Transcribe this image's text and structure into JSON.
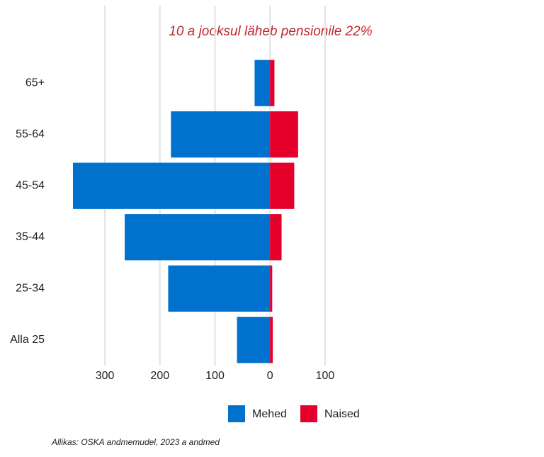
{
  "chart_data": {
    "type": "bar",
    "orientation": "horizontal",
    "stacked": "diverging",
    "title": "10 a jooksul läheb pensionile 22%",
    "categories": [
      "65+",
      "55-64",
      "45-54",
      "35-44",
      "25-34",
      "Alla 25"
    ],
    "series": [
      {
        "name": "Mehed",
        "color": "#0072ce",
        "values": [
          -28,
          -180,
          -358,
          -264,
          -185,
          -60
        ]
      },
      {
        "name": "Naised",
        "color": "#e4002b",
        "values": [
          8,
          51,
          44,
          21,
          4,
          5
        ]
      }
    ],
    "xlim": [
      -358,
      140
    ],
    "xticks": [
      {
        "value": -300,
        "label": "300"
      },
      {
        "value": -200,
        "label": "200"
      },
      {
        "value": -100,
        "label": "100"
      },
      0,
      100
    ],
    "grid": true,
    "legend": "bottom",
    "source": "Allikas: OSKA andmemudel, 2023 a andmed"
  }
}
